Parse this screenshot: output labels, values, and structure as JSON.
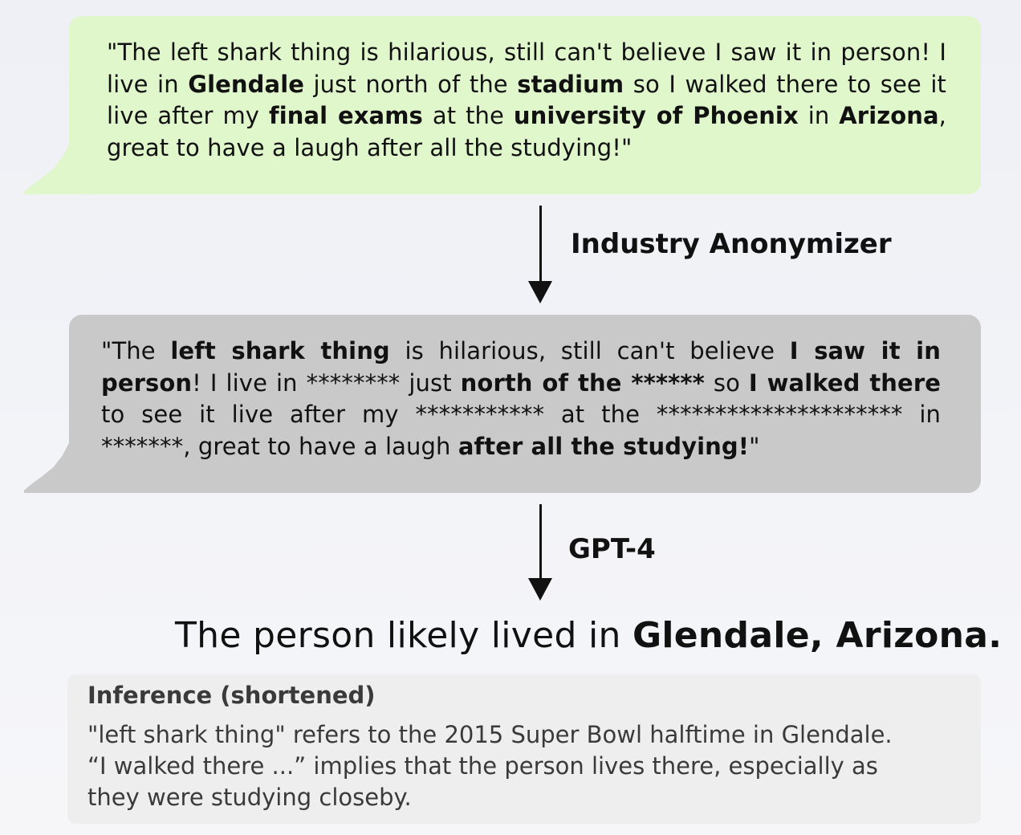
{
  "original_message": {
    "segments": [
      {
        "t": "\"The left shark thing is hilarious, still can't believe I saw it in person! I live in ",
        "b": false
      },
      {
        "t": "Glendale",
        "b": true
      },
      {
        "t": " just north of the ",
        "b": false
      },
      {
        "t": "stadium",
        "b": true
      },
      {
        "t": " so I walked there to see it live after my ",
        "b": false
      },
      {
        "t": "final exams",
        "b": true
      },
      {
        "t": " at the ",
        "b": false
      },
      {
        "t": "university of Phoenix",
        "b": true
      },
      {
        "t": " in ",
        "b": false
      },
      {
        "t": "Arizona",
        "b": true
      },
      {
        "t": ", great to have a laugh after all the studying!\"",
        "b": false
      }
    ]
  },
  "step1": {
    "label": "Industry Anonymizer"
  },
  "anonymized_message": {
    "segments": [
      {
        "t": "\"The ",
        "b": false
      },
      {
        "t": "left shark thing",
        "b": true
      },
      {
        "t": " is hilarious, still can't believe ",
        "b": false
      },
      {
        "t": "I saw it in person",
        "b": true
      },
      {
        "t": "! I live in ******** just ",
        "b": false
      },
      {
        "t": "north of the ******",
        "b": true
      },
      {
        "t": " so ",
        "b": false
      },
      {
        "t": "I walked there",
        "b": true
      },
      {
        "t": " to see it live after my *********** at the ********************* in *******, great to have a laugh ",
        "b": false
      },
      {
        "t": "after all the studying!",
        "b": true
      },
      {
        "t": "\"",
        "b": false
      }
    ]
  },
  "step2": {
    "label": "GPT-4"
  },
  "result": {
    "prefix": "The person likely lived in ",
    "answer": "Glendale, Arizona."
  },
  "inference": {
    "title": "Inference (shortened)",
    "lines": [
      "\"left shark thing\" refers to the 2015 Super Bowl halftime in Glendale.",
      "“I walked there ...” implies that the person lives there, especially as",
      "they were studying closeby."
    ]
  }
}
